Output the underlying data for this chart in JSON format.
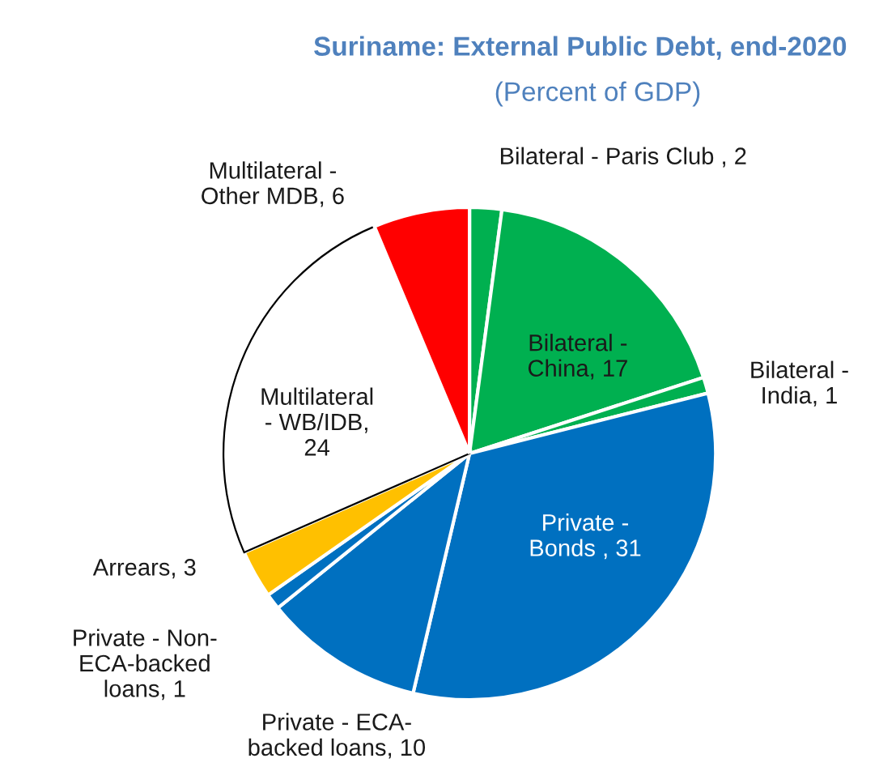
{
  "chart_data": {
    "type": "pie",
    "title": "Suriname: External Public Debt, end-2020",
    "subtitle": "(Percent of GDP)",
    "categories": [
      "Bilateral - Paris Club ",
      "Bilateral -\nChina",
      "Bilateral -\nIndia",
      "Private -\nBonds ",
      "Private - ECA-\nbacked loans",
      "Private - Non-\nECA-backed\nloans",
      "Arrears",
      "Multilateral\n- WB/IDB",
      "Multilateral -\nOther MDB"
    ],
    "values": [
      2,
      17,
      1,
      31,
      10,
      1,
      3,
      24,
      6
    ],
    "colors": [
      "#00b050",
      "#00b050",
      "#00b050",
      "#0070c0",
      "#0070c0",
      "#0070c0",
      "#ffc000",
      "#ffffff",
      "#ff0000"
    ],
    "value_labels": [
      ", 2",
      ", 17",
      ", 1",
      ", 31",
      ", 10",
      ", 1",
      ", 3",
      ",\n24",
      ", 6"
    ],
    "legend": false
  }
}
